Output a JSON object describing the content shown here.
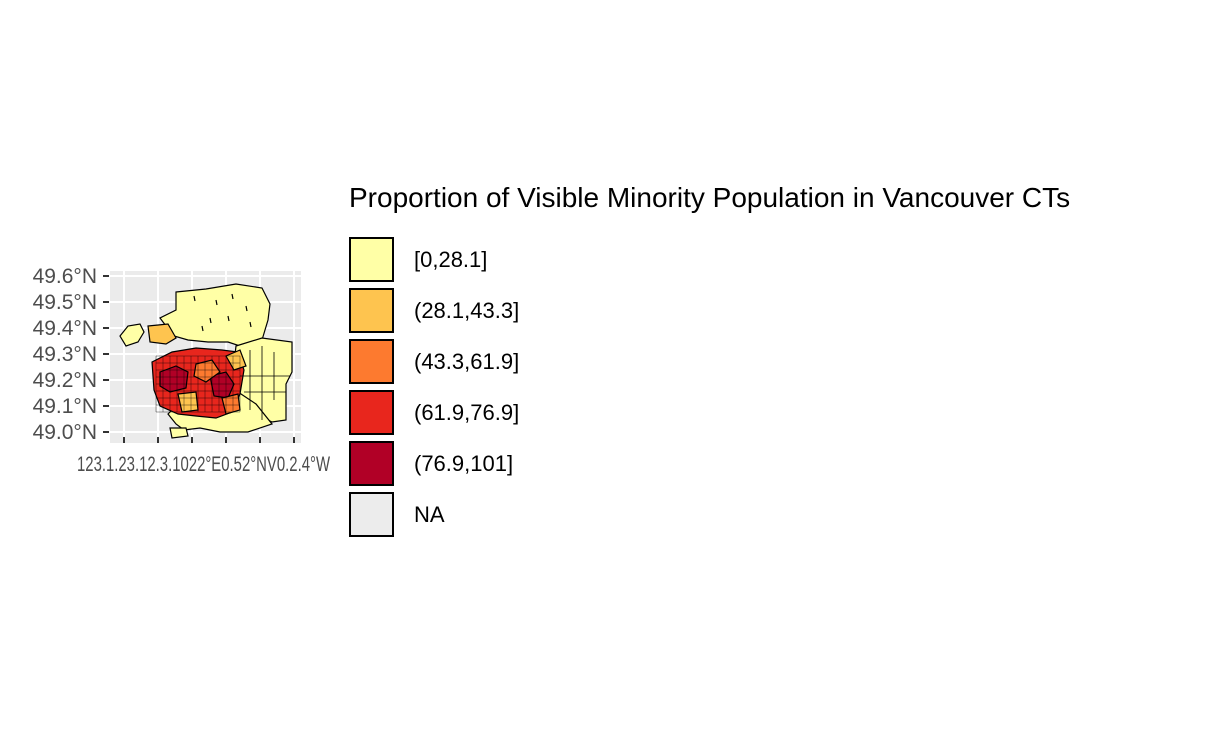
{
  "chart_data": {
    "type": "choropleth-map",
    "legend": {
      "title": "Proportion of Visible Minority Population in Vancouver CTs",
      "placement": "right",
      "entries": [
        {
          "label": "[0,28.1]",
          "color": "#ffffa6"
        },
        {
          "label": "(28.1,43.3]",
          "color": "#fec44f"
        },
        {
          "label": "(43.3,61.9]",
          "color": "#fd7a2f"
        },
        {
          "label": "(61.9,76.9]",
          "color": "#e8261d"
        },
        {
          "label": "(76.9,101]",
          "color": "#b10026"
        },
        {
          "label": "NA",
          "color": "#ececec"
        }
      ]
    },
    "y_ticks": [
      "49.6°N",
      "49.5°N",
      "49.4°N",
      "49.3°N",
      "49.2°N",
      "49.1°N",
      "49.0°N"
    ],
    "x_ticks": [
      "123.4°W",
      "123.3°W",
      "123.2°W",
      "123.1°W",
      "123.0°W",
      "122.9°W",
      "122.8°W",
      "122.7°W"
    ],
    "x_ticks_overlapping_render": "123.1.23.12.3.1022°E0.52°NV0.2.4°W",
    "grid": true,
    "panel_background": "#ebebeb"
  }
}
